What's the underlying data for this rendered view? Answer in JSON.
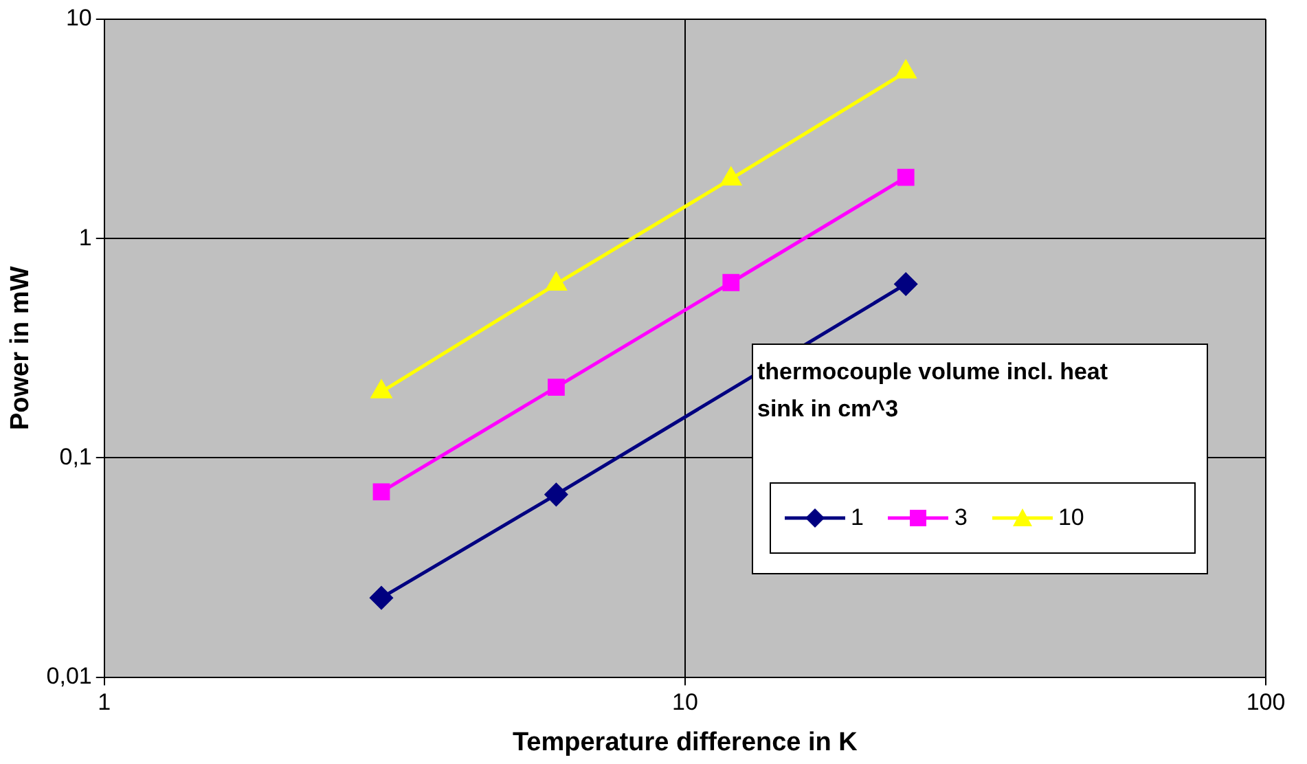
{
  "chart_data": {
    "type": "line",
    "xlabel": "Temperature difference in K",
    "ylabel": "Power in mW",
    "legend_title": "thermocouple volume incl. heat sink in cm^3",
    "log": "xy",
    "x": [
      3,
      6,
      12,
      24
    ],
    "xlim": [
      1,
      100
    ],
    "xticks": [
      1,
      10,
      100
    ],
    "ylim": [
      0.01,
      10
    ],
    "yticks": [
      {
        "value": 0.01,
        "label": "0,01"
      },
      {
        "value": 0.1,
        "label": "0,1"
      },
      1,
      10
    ],
    "grid": true,
    "legend": "bottom right",
    "line_style": "solid",
    "series": [
      {
        "name": "1",
        "color": "#000080",
        "marker": "diamond",
        "values": [
          0.023,
          0.068,
          null,
          0.62
        ]
      },
      {
        "name": "3",
        "color": "#ff00ff",
        "marker": "square",
        "values": [
          0.07,
          0.21,
          0.63,
          1.9
        ]
      },
      {
        "name": "10",
        "color": "#ffff00",
        "marker": "triangle",
        "values": [
          0.2,
          0.62,
          1.87,
          5.75
        ]
      }
    ]
  }
}
